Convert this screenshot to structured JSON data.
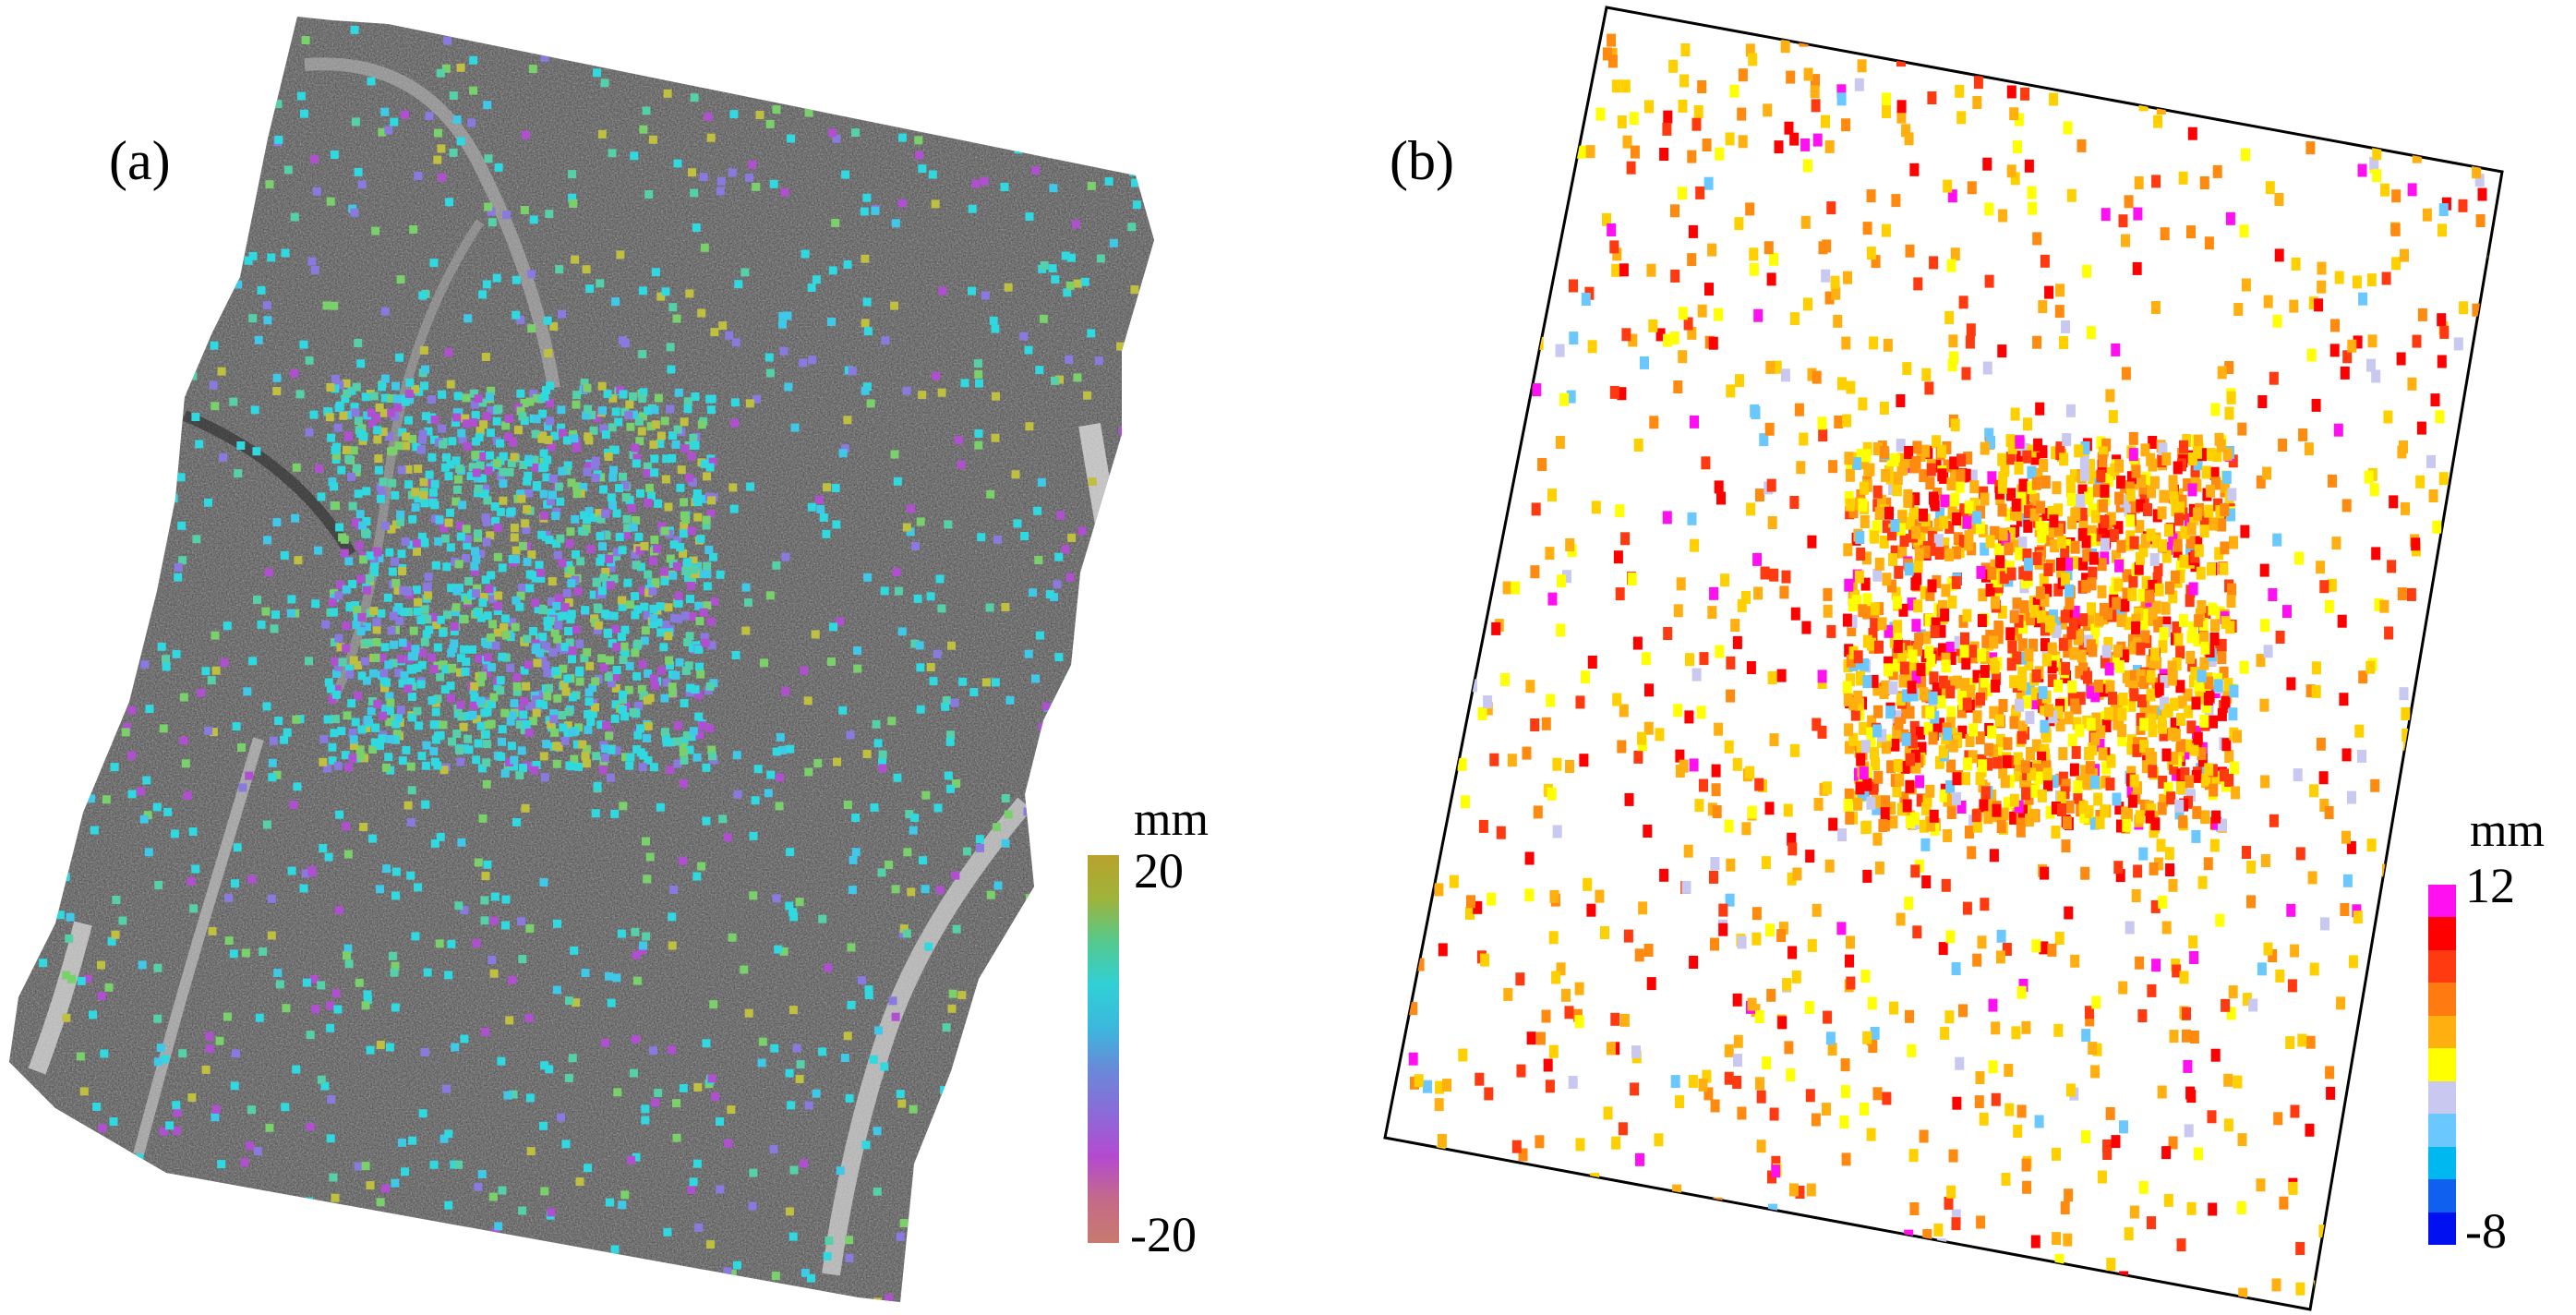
{
  "panel_a": {
    "label": "(a)",
    "colorbar": {
      "unit": "mm",
      "max_label": "20",
      "min_label": "-20",
      "stops": [
        "#b8a22c",
        "#9fb33a",
        "#55c98c",
        "#30d0d6",
        "#3bb8dc",
        "#6a88d8",
        "#8c6ad8",
        "#b44ad0",
        "#c46a88",
        "#c87a6e"
      ]
    }
  },
  "panel_b": {
    "label": "(b)",
    "colorbar": {
      "unit": "mm",
      "max_label": "12",
      "min_label": "-8",
      "classes": [
        "#ff10f0",
        "#ff0000",
        "#ff3a10",
        "#ff7a10",
        "#ffb010",
        "#ffff00",
        "#c8c8f0",
        "#6ac8ff",
        "#00b8f0",
        "#1060f0",
        "#0010f0"
      ]
    }
  }
}
